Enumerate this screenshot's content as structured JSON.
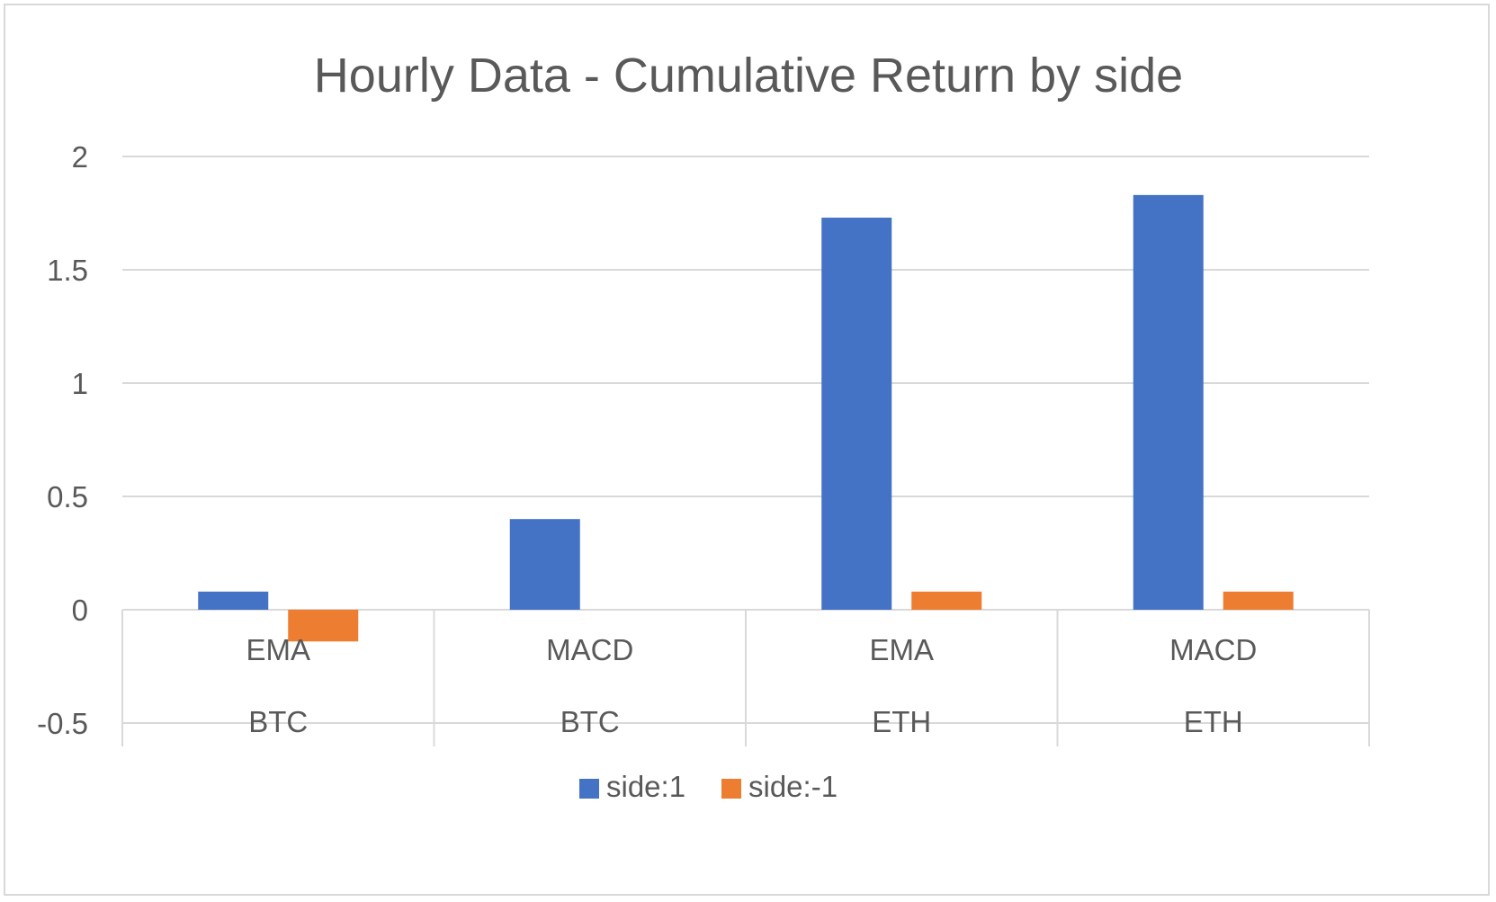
{
  "chart_data": {
    "type": "bar",
    "title": "Hourly Data - Cumulative Return by side",
    "categories": [
      {
        "inner": "EMA",
        "outer": "BTC"
      },
      {
        "inner": "MACD",
        "outer": "BTC"
      },
      {
        "inner": "EMA",
        "outer": "ETH"
      },
      {
        "inner": "MACD",
        "outer": "ETH"
      }
    ],
    "series": [
      {
        "name": "side:1",
        "color": "#4472c4",
        "values": [
          0.08,
          0.4,
          1.73,
          1.83
        ]
      },
      {
        "name": "side:-1",
        "color": "#ed7d31",
        "values": [
          -0.14,
          0.0,
          0.08,
          0.08
        ]
      }
    ],
    "ylim": [
      -0.5,
      2
    ],
    "yticks": [
      "2",
      "1.5",
      "1",
      "0.5",
      "0",
      "-0.5"
    ],
    "ytick_values": [
      2,
      1.5,
      1,
      0.5,
      0,
      -0.5
    ],
    "grid": true,
    "legend_position": "bottom",
    "xlabel": "",
    "ylabel": ""
  }
}
